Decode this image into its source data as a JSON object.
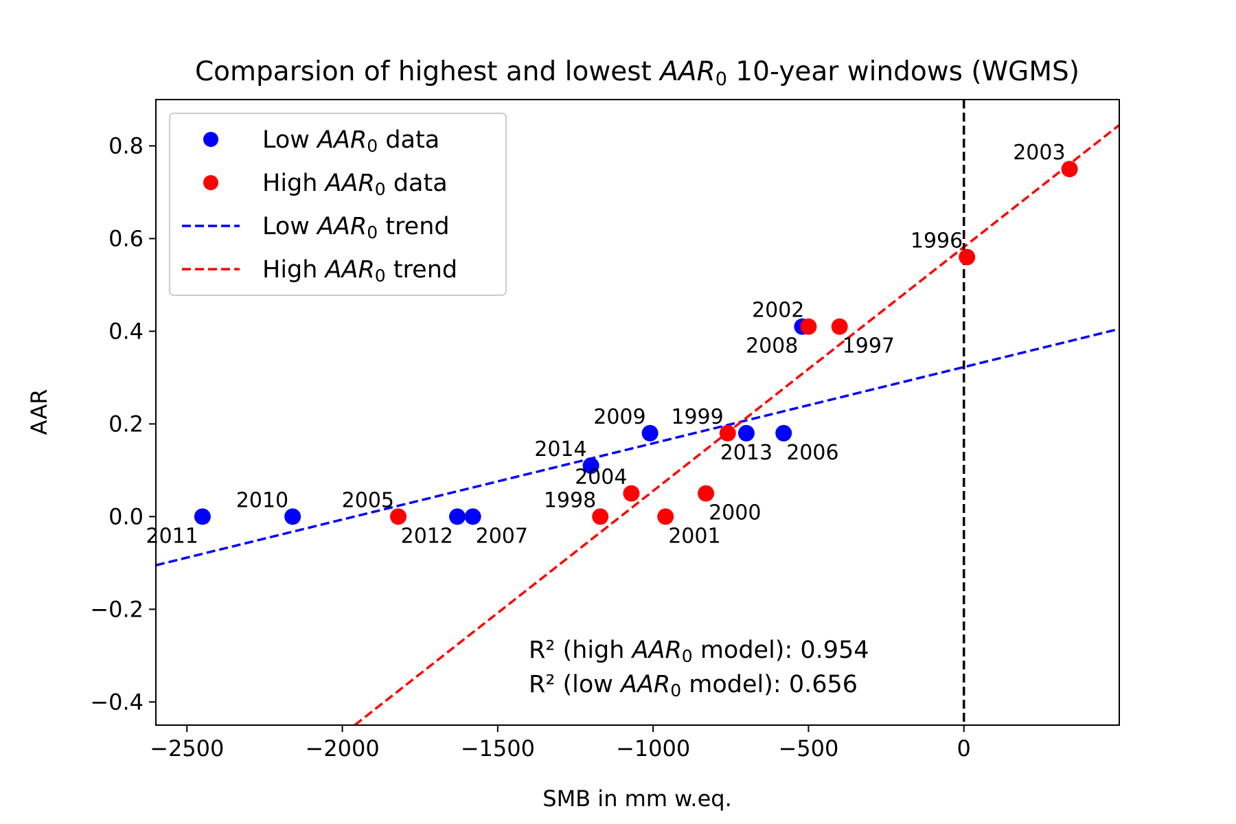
{
  "chart_data": {
    "type": "scatter",
    "title_prefix": "Comparsion of highest and lowest ",
    "title_suffix": " 10-year windows (WGMS)",
    "aar_symbol": "AAR",
    "aar_subscript": "0",
    "xlabel": "SMB in mm w.eq.",
    "ylabel": "AAR",
    "xlim": [
      -2600,
      500
    ],
    "ylim": [
      -0.45,
      0.9
    ],
    "x_ticks": [
      {
        "value": -2500,
        "label": "−2500"
      },
      {
        "value": -2000,
        "label": "−2000"
      },
      {
        "value": -1500,
        "label": "−1500"
      },
      {
        "value": -1000,
        "label": "−1000"
      },
      {
        "value": -500,
        "label": "−500"
      },
      {
        "value": 0,
        "label": "0"
      }
    ],
    "y_ticks": [
      {
        "value": 0.8,
        "label": "0.8"
      },
      {
        "value": 0.6,
        "label": "0.6"
      },
      {
        "value": 0.4,
        "label": "0.4"
      },
      {
        "value": 0.2,
        "label": "0.2"
      },
      {
        "value": 0.0,
        "label": "0.0"
      },
      {
        "value": -0.2,
        "label": "−0.2"
      },
      {
        "value": -0.4,
        "label": "−0.4"
      }
    ],
    "grid": false,
    "legend_position": "top-left",
    "vertical_reference_line": {
      "x": 0,
      "color": "#000000",
      "style": "dashed"
    },
    "series": [
      {
        "name_prefix": "Low ",
        "name_suffix": " data",
        "kind": "scatter",
        "color": "#0000ff",
        "points": [
          {
            "x": -2450,
            "y": 0.0,
            "label": "2011",
            "label_pos": "below-left"
          },
          {
            "x": -2160,
            "y": 0.0,
            "label": "2010",
            "label_pos": "above-left"
          },
          {
            "x": -1630,
            "y": 0.0,
            "label": "2012",
            "label_pos": "below-left"
          },
          {
            "x": -1580,
            "y": 0.0,
            "label": "2007",
            "label_pos": "below-right"
          },
          {
            "x": -1200,
            "y": 0.11,
            "label": "2014",
            "label_pos": "above-left"
          },
          {
            "x": -1010,
            "y": 0.18,
            "label": "2009",
            "label_pos": "above-left"
          },
          {
            "x": -700,
            "y": 0.18,
            "label": "2013",
            "label_pos": "below-center"
          },
          {
            "x": -580,
            "y": 0.18,
            "label": "2006",
            "label_pos": "below-right"
          },
          {
            "x": -520,
            "y": 0.41,
            "label": "2008",
            "label_pos": "below-left"
          }
        ]
      },
      {
        "name_prefix": "High ",
        "name_suffix": " data",
        "kind": "scatter",
        "color": "#ff0000",
        "points": [
          {
            "x": -1820,
            "y": 0.0,
            "label": "2005",
            "label_pos": "above-left"
          },
          {
            "x": -1170,
            "y": 0.0,
            "label": "1998",
            "label_pos": "above-left"
          },
          {
            "x": -1070,
            "y": 0.05,
            "label": "2004",
            "label_pos": "above-left"
          },
          {
            "x": -960,
            "y": 0.0,
            "label": "2001",
            "label_pos": "below-right"
          },
          {
            "x": -830,
            "y": 0.05,
            "label": "2000",
            "label_pos": "below-right"
          },
          {
            "x": -760,
            "y": 0.18,
            "label": "1999",
            "label_pos": "above-left"
          },
          {
            "x": -500,
            "y": 0.41,
            "label": "2002",
            "label_pos": "above-left"
          },
          {
            "x": -400,
            "y": 0.41,
            "label": "1997",
            "label_pos": "below-right"
          },
          {
            "x": 10,
            "y": 0.56,
            "label": "1996",
            "label_pos": "above-left"
          },
          {
            "x": 340,
            "y": 0.75,
            "label": "2003",
            "label_pos": "above-left"
          }
        ]
      },
      {
        "name_prefix": "Low ",
        "name_suffix": " trend",
        "kind": "line",
        "color": "#0000ff",
        "style": "dashed",
        "x": [
          -2600,
          500
        ],
        "y": [
          -0.105,
          0.405
        ]
      },
      {
        "name_prefix": "High ",
        "name_suffix": " trend",
        "kind": "line",
        "color": "#ff0000",
        "style": "dashed",
        "x": [
          -1960,
          500
        ],
        "y": [
          -0.45,
          0.845
        ]
      }
    ],
    "annotations": [
      {
        "prefix": "R² (high ",
        "suffix": " model): 0.954"
      },
      {
        "prefix": "R² (low ",
        "suffix": " model): 0.656"
      }
    ]
  }
}
